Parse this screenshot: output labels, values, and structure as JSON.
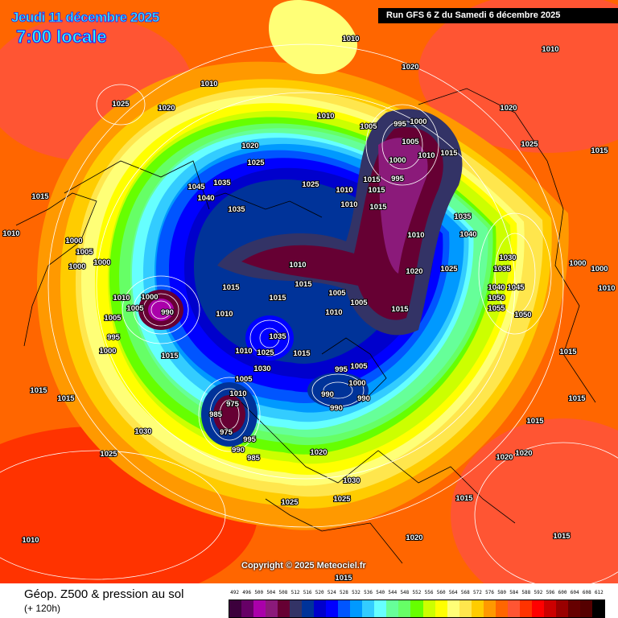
{
  "header": {
    "date": "Jeudi 11 décembre 2025",
    "time": "7:00 locale",
    "run": "Run GFS 6 Z du Samedi 6 décembre 2025"
  },
  "copyright": "Copyright © 2025 Meteociel.fr",
  "footer": {
    "title": "Géop. Z500 & pression au sol",
    "subtitle": "(+ 120h)"
  },
  "legend": {
    "unit_values": [
      "492",
      "496",
      "500",
      "504",
      "508",
      "512",
      "516",
      "520",
      "524",
      "528",
      "532",
      "536",
      "540",
      "544",
      "548",
      "552",
      "556",
      "560",
      "564",
      "568",
      "572",
      "576",
      "580",
      "584",
      "588",
      "592",
      "596",
      "600",
      "604",
      "608",
      "612"
    ],
    "colors": [
      "#3c003c",
      "#660066",
      "#aa00aa",
      "#8b1a7a",
      "#660033",
      "#333366",
      "#003399",
      "#0000cc",
      "#0000ff",
      "#0055ff",
      "#0099ff",
      "#33ccff",
      "#66ffff",
      "#66ff99",
      "#66ff66",
      "#66ff00",
      "#ccff00",
      "#ffff00",
      "#ffff77",
      "#ffe64d",
      "#ffcc00",
      "#ff9900",
      "#ff6600",
      "#ff5533",
      "#ff3300",
      "#ff0000",
      "#cc0000",
      "#990000",
      "#660000",
      "#550000",
      "#000000"
    ]
  },
  "isobar_labels": [
    "1010",
    "1010",
    "1020",
    "1010",
    "1025",
    "1020",
    "1010",
    "1020",
    "1005",
    "995",
    "1000",
    "1005",
    "1010",
    "1015",
    "1020",
    "1025",
    "1025",
    "1015",
    "1000",
    "995",
    "1035",
    "1040",
    "1045",
    "1025",
    "1010",
    "1015",
    "1015",
    "1015",
    "1010",
    "1015",
    "1035",
    "1035",
    "1040",
    "1010",
    "1000",
    "1005",
    "1000",
    "1000",
    "1010",
    "1030",
    "1000",
    "1000",
    "1010",
    "1010",
    "1020",
    "1025",
    "1035",
    "1040",
    "1045",
    "1015",
    "1015",
    "1005",
    "1010",
    "1005",
    "1050",
    "1055",
    "1015",
    "1015",
    "1010",
    "1005",
    "1000",
    "990",
    "1010",
    "1050",
    "1005",
    "1035",
    "1025",
    "995",
    "1000",
    "1015",
    "1010",
    "1030",
    "1015",
    "1015",
    "1005",
    "1000",
    "995",
    "1005",
    "1010",
    "1015",
    "1015",
    "990",
    "990",
    "990",
    "975",
    "1015",
    "985",
    "975",
    "1015",
    "1030",
    "990",
    "995",
    "985",
    "1020",
    "1025",
    "1020",
    "1020",
    "1030",
    "1025",
    "1025",
    "1015",
    "1020",
    "1010",
    "1015",
    "1015"
  ]
}
